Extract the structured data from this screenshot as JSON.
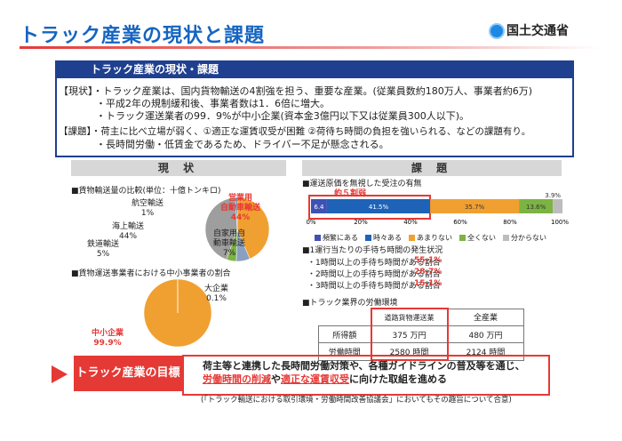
{
  "header": {
    "title": "トラック産業の現状と課題",
    "ministry": "国土交通省"
  },
  "summary": {
    "heading": "トラック産業の現状・課題",
    "genjo_lines": [
      "【現状】・トラック産業は、国内貨物輸送の4割強を担う、重要な産業。(従業員数約180万人、事業者約6万)",
      "・平成2年の規制緩和後、事業者数は1．6倍に増大。",
      "・トラック運送業者の99．9%が中小企業(資本金3億円以下又は従業員300人以下)。"
    ],
    "kadai_lines": [
      "【課題】・荷主に比べ立場が弱く、①適正な運賃収受が困難 ②荷待ち時間の負担を強いられる、などの課題有り。",
      "・長時間労働・低賃金であるため、ドライバー不足が懸念される。"
    ]
  },
  "left": {
    "heading": "現 状",
    "chart1_title": "■貨物輸送量の比較(単位：十億トンキロ)",
    "chart2_title": "■貨物運送事業者における中小事業者の割合"
  },
  "right": {
    "heading": "課 題",
    "chart1_title": "■運送原価を無視した受注の有無",
    "callout": "約５割弱",
    "chart2_title": "■1運行当たりの手待ち時間の発生状況",
    "wait_rows": [
      {
        "label": "・1時間以上の手待ち時間がある割合",
        "value": "55.1%"
      },
      {
        "label": "・2時間以上の手待ち時間がある割合",
        "value": "28.7%"
      },
      {
        "label": "・3時間以上の手待ち時間がある割合",
        "value": "15.1%"
      }
    ],
    "env_title": "■トラック業界の労働環境",
    "env_table": {
      "headers": [
        "",
        "道路貨物運送業",
        "全産業"
      ],
      "rows": [
        [
          "所得額",
          "375 万円",
          "480 万円"
        ],
        [
          "労働時間",
          "2580 時間",
          "2124 時間"
        ]
      ]
    }
  },
  "goal": {
    "label": "トラック産業の目標",
    "line1": "荷主等と連携した長時間労働対策や、各種ガイドラインの普及等を通じ、",
    "line2a": "労働時間の削減",
    "line2b": "や",
    "line2c": "適正な運賃収受",
    "line2d": "に向けた取組を進める",
    "line3": "(「トラック輸送における取引環境・労働時間改善協議会」においてもその趣旨について合意)"
  },
  "chart_data": [
    {
      "type": "pie",
      "title": "貨物輸送量の比較(単位：十億トンキロ)",
      "categories": [
        "営業用自動車輸送",
        "自家用自動車輸送",
        "鉄道輸送",
        "海上輸送",
        "航空輸送"
      ],
      "values": [
        44,
        7,
        5,
        44,
        1
      ],
      "labels": [
        "営業用\n自動車輸送\n44%",
        "自家用自\n動車輸送\n7%",
        "鉄道輸送\n5%",
        "海上輸送\n44%",
        "航空輸送\n1%"
      ],
      "colors": [
        "#f0a030",
        "#8aa0c0",
        "#7cb342",
        "#9e9e9e",
        "#5b7fb3"
      ]
    },
    {
      "type": "pie",
      "title": "貨物運送事業者における中小事業者の割合",
      "categories": [
        "中小企業",
        "大企業"
      ],
      "values": [
        99.9,
        0.1
      ],
      "labels": [
        "中小企業\n99.9%",
        "大企業\n0.1%"
      ],
      "colors": [
        "#f0a030",
        "#e0e0e0"
      ]
    },
    {
      "type": "bar",
      "title": "運送原価を無視した受注の有無",
      "categories": [
        "頻繁にある",
        "時々ある",
        "あまりない",
        "全くない",
        "分からない"
      ],
      "values": [
        6.4,
        41.5,
        35.7,
        13.6,
        3.9
      ],
      "value_labels": [
        "6.4",
        "41.5%",
        "35.7%",
        "13.6%",
        "3.9%"
      ],
      "colors": [
        "#3f51b5",
        "#1e63b8",
        "#f0a030",
        "#7cb342",
        "#bdbdbd"
      ],
      "xticks": [
        "0%",
        "20%",
        "40%",
        "60%",
        "80%",
        "100%"
      ],
      "xlim": [
        0,
        100
      ]
    }
  ]
}
